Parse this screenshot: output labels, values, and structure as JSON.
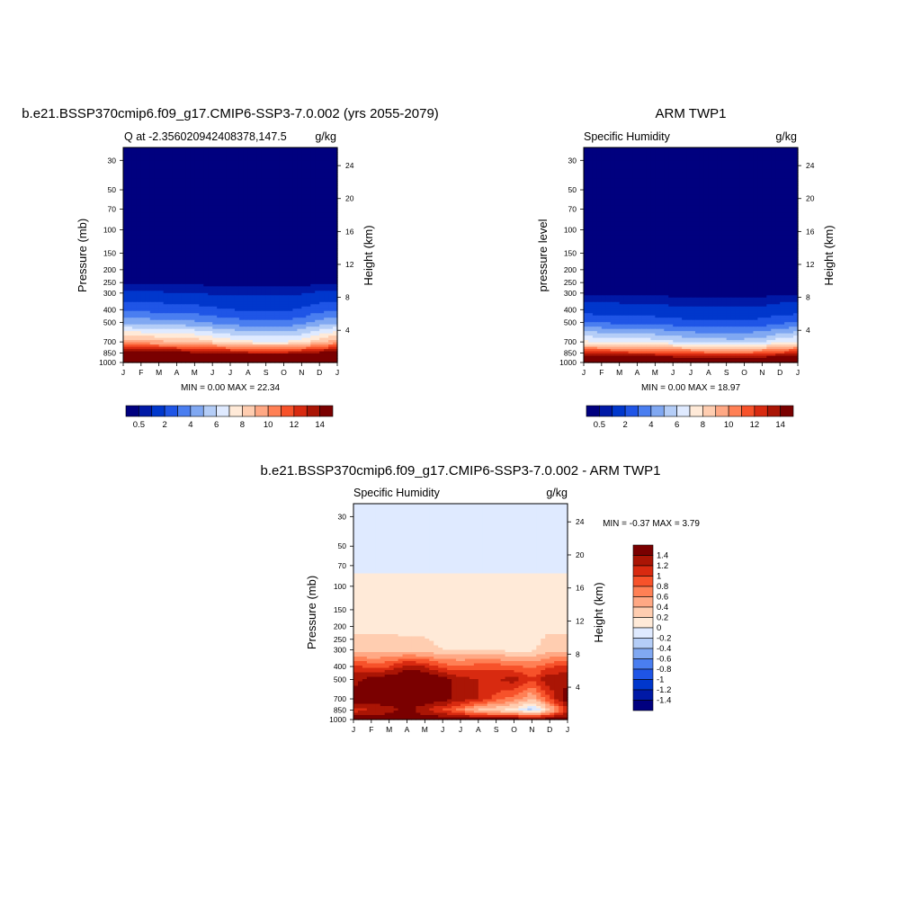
{
  "panels": [
    {
      "title": "b.e21.BSSP370cmip6.f09_g17.CMIP6-SSP3-7.0.002 (yrs 2055-2079)",
      "left_label": "Q at -2.356020942408378,147.5",
      "units": "g/kg",
      "ylabel": "Pressure (mb)",
      "ylabel_right": "Height (km)",
      "minmax": "MIN =   0.00 MAX =  22.34"
    },
    {
      "title": "ARM TWP1",
      "left_label": "Specific Humidity",
      "units": "g/kg",
      "ylabel": "pressure level",
      "ylabel_right": "Height (km)",
      "minmax": "MIN =   0.00 MAX =  18.97"
    },
    {
      "title": "b.e21.BSSP370cmip6.f09_g17.CMIP6-SSP3-7.0.002 - ARM TWP1",
      "left_label": "Specific Humidity",
      "units": "g/kg",
      "ylabel": "Pressure (mb)",
      "ylabel_right": "Height (km)",
      "minmax": "MIN =  -0.37 MAX =   3.79"
    }
  ],
  "axes": {
    "pressure_ticks": [
      30,
      50,
      70,
      100,
      150,
      200,
      250,
      300,
      400,
      500,
      700,
      850,
      1000
    ],
    "height_ticks": [
      24,
      20,
      16,
      12,
      8,
      4
    ],
    "month_ticks": [
      "J",
      "F",
      "M",
      "A",
      "M",
      "J",
      "J",
      "A",
      "S",
      "O",
      "N",
      "D",
      "J"
    ]
  },
  "colorbars": {
    "abs_labels": [
      "0.5",
      "2",
      "4",
      "6",
      "8",
      "10",
      "12",
      "14"
    ],
    "abs_colors": [
      "#00007f",
      "#0019a6",
      "#0037cc",
      "#1f55e6",
      "#4a7ef0",
      "#80a8f2",
      "#b4cdf7",
      "#dfeaff",
      "#ffead8",
      "#ffcdb0",
      "#ffa884",
      "#ff8055",
      "#f7522a",
      "#d82a10",
      "#aa1505",
      "#7a0000"
    ],
    "diff_labels": [
      "1.4",
      "1.2",
      "1",
      "0.8",
      "0.6",
      "0.4",
      "0.2",
      "0",
      "-0.2",
      "-0.4",
      "-0.6",
      "-0.8",
      "-1",
      "-1.2",
      "-1.4"
    ],
    "diff_colors": [
      "#7a0000",
      "#aa1505",
      "#d82a10",
      "#f7522a",
      "#ff8055",
      "#ffa884",
      "#ffcdb0",
      "#ffead8",
      "#dfeaff",
      "#b4cdf7",
      "#80a8f2",
      "#4a7ef0",
      "#1f55e6",
      "#0037cc",
      "#0019a6",
      "#00007f"
    ]
  },
  "chart_data": [
    {
      "type": "heatmap",
      "title": "b.e21.BSSP370cmip6.f09_g17.CMIP6-SSP3-7.0.002 (yrs 2055-2079)",
      "xlabel": "",
      "ylabel": "Pressure (mb)",
      "x": [
        "J",
        "F",
        "M",
        "A",
        "M",
        "J",
        "J",
        "A",
        "S",
        "O",
        "N",
        "D",
        "J"
      ],
      "y": [
        30,
        50,
        70,
        100,
        150,
        200,
        250,
        300,
        400,
        500,
        700,
        850,
        1000
      ],
      "ylim": [
        1000,
        30
      ],
      "scale": "log-pressure",
      "values": [
        [
          0,
          0,
          0,
          0,
          0,
          0,
          0,
          0,
          0,
          0,
          0,
          0,
          0
        ],
        [
          0,
          0,
          0,
          0,
          0,
          0,
          0,
          0,
          0,
          0,
          0,
          0,
          0
        ],
        [
          0,
          0,
          0,
          0,
          0,
          0,
          0,
          0,
          0,
          0,
          0,
          0,
          0
        ],
        [
          0,
          0,
          0,
          0,
          0,
          0,
          0,
          0,
          0,
          0,
          0,
          0,
          0
        ],
        [
          0,
          0,
          0,
          0,
          0,
          0,
          0,
          0,
          0,
          0,
          0,
          0,
          0
        ],
        [
          0.1,
          0.1,
          0.1,
          0.1,
          0.1,
          0.1,
          0.1,
          0.1,
          0.1,
          0.1,
          0.1,
          0.1,
          0.1
        ],
        [
          0.4,
          0.4,
          0.4,
          0.4,
          0.4,
          0.3,
          0.3,
          0.3,
          0.3,
          0.3,
          0.3,
          0.4,
          0.4
        ],
        [
          1.2,
          1.1,
          1.1,
          1.0,
          1.0,
          0.9,
          0.9,
          0.8,
          0.8,
          0.8,
          0.9,
          1.1,
          1.2
        ],
        [
          2.9,
          2.7,
          2.6,
          2.6,
          2.4,
          2.2,
          2.0,
          1.9,
          1.9,
          1.9,
          2.1,
          2.6,
          2.9
        ],
        [
          4.8,
          4.6,
          4.5,
          4.4,
          4.2,
          3.8,
          3.5,
          3.3,
          3.3,
          3.3,
          3.6,
          4.4,
          4.8
        ],
        [
          9.5,
          9.4,
          9.2,
          9.1,
          8.8,
          8.2,
          7.6,
          7.2,
          7.0,
          7.0,
          7.5,
          8.8,
          9.5
        ],
        [
          14.6,
          14.6,
          14.5,
          14.5,
          14.3,
          14.0,
          13.6,
          13.4,
          13.3,
          13.3,
          13.6,
          14.4,
          14.6
        ],
        [
          19.5,
          19.5,
          19.6,
          19.6,
          19.4,
          19.0,
          18.6,
          18.5,
          18.5,
          18.5,
          18.7,
          19.3,
          19.5
        ]
      ]
    },
    {
      "type": "heatmap",
      "title": "ARM TWP1",
      "xlabel": "",
      "ylabel": "pressure level",
      "x": [
        "J",
        "F",
        "M",
        "A",
        "M",
        "J",
        "J",
        "A",
        "S",
        "O",
        "N",
        "D",
        "J"
      ],
      "y": [
        30,
        50,
        70,
        100,
        150,
        200,
        250,
        300,
        400,
        500,
        700,
        850,
        1000
      ],
      "ylim": [
        1000,
        30
      ],
      "scale": "log-pressure",
      "values": [
        [
          0,
          0,
          0,
          0,
          0,
          0,
          0,
          0,
          0,
          0,
          0,
          0,
          0
        ],
        [
          0,
          0,
          0,
          0,
          0,
          0,
          0,
          0,
          0,
          0,
          0,
          0,
          0
        ],
        [
          0,
          0,
          0,
          0,
          0,
          0,
          0,
          0,
          0,
          0,
          0,
          0,
          0
        ],
        [
          0,
          0,
          0,
          0,
          0,
          0,
          0,
          0,
          0,
          0,
          0,
          0,
          0
        ],
        [
          0,
          0,
          0,
          0,
          0,
          0,
          0,
          0,
          0,
          0,
          0,
          0,
          0
        ],
        [
          0,
          0,
          0,
          0,
          0,
          0,
          0,
          0,
          0,
          0,
          0,
          0,
          0
        ],
        [
          0.1,
          0.1,
          0.1,
          0.1,
          0.1,
          0.1,
          0.1,
          0.1,
          0.1,
          0.1,
          0.1,
          0.1,
          0.1
        ],
        [
          0.4,
          0.4,
          0.4,
          0.4,
          0.4,
          0.3,
          0.3,
          0.3,
          0.3,
          0.3,
          0.3,
          0.4,
          0.4
        ],
        [
          1.5,
          1.4,
          1.4,
          1.3,
          1.3,
          1.2,
          1.1,
          1.1,
          1.1,
          1.1,
          1.2,
          1.4,
          1.5
        ],
        [
          3.0,
          2.9,
          2.8,
          2.7,
          2.6,
          2.4,
          2.3,
          2.2,
          2.2,
          2.2,
          2.4,
          2.8,
          3.0
        ],
        [
          7.2,
          7.0,
          6.9,
          6.8,
          6.5,
          6.1,
          5.8,
          5.6,
          5.5,
          5.5,
          5.8,
          6.8,
          7.2
        ],
        [
          12.6,
          12.5,
          12.4,
          12.3,
          12.1,
          11.8,
          11.5,
          11.3,
          11.2,
          11.2,
          11.5,
          12.3,
          12.6
        ],
        [
          17.8,
          17.8,
          17.9,
          17.9,
          17.7,
          17.3,
          17.0,
          16.9,
          16.9,
          16.9,
          17.1,
          17.6,
          17.8
        ]
      ]
    },
    {
      "type": "heatmap",
      "title": "b.e21.BSSP370cmip6.f09_g17.CMIP6-SSP3-7.0.002 - ARM TWP1",
      "xlabel": "",
      "ylabel": "Pressure (mb)",
      "x": [
        "J",
        "F",
        "M",
        "A",
        "M",
        "J",
        "J",
        "A",
        "S",
        "O",
        "N",
        "D",
        "J"
      ],
      "y": [
        30,
        50,
        70,
        100,
        150,
        200,
        250,
        300,
        400,
        500,
        700,
        850,
        1000
      ],
      "ylim": [
        1000,
        30
      ],
      "scale": "log-pressure",
      "values": [
        [
          -0.05,
          -0.05,
          -0.05,
          -0.05,
          -0.05,
          -0.05,
          -0.05,
          -0.05,
          -0.05,
          -0.05,
          -0.05,
          -0.05,
          -0.05
        ],
        [
          -0.05,
          -0.05,
          -0.05,
          -0.05,
          -0.05,
          -0.05,
          -0.05,
          -0.05,
          -0.05,
          -0.05,
          -0.05,
          -0.05,
          -0.05
        ],
        [
          -0.05,
          -0.05,
          -0.05,
          -0.05,
          -0.05,
          -0.05,
          -0.05,
          -0.05,
          -0.05,
          -0.05,
          -0.05,
          -0.05,
          -0.05
        ],
        [
          0.08,
          0.08,
          0.08,
          0.08,
          0.08,
          0.08,
          0.08,
          0.08,
          0.08,
          0.08,
          0.08,
          0.08,
          0.08
        ],
        [
          0.1,
          0.1,
          0.1,
          0.1,
          0.1,
          0.1,
          0.1,
          0.1,
          0.1,
          0.1,
          0.1,
          0.1,
          0.1
        ],
        [
          0.12,
          0.12,
          0.12,
          0.12,
          0.12,
          0.12,
          0.12,
          0.12,
          0.12,
          0.12,
          0.12,
          0.12,
          0.12
        ],
        [
          0.25,
          0.25,
          0.25,
          0.22,
          0.22,
          0.15,
          0.15,
          0.15,
          0.15,
          0.15,
          0.15,
          0.25,
          0.25
        ],
        [
          0.3,
          0.3,
          0.28,
          0.28,
          0.25,
          0.2,
          0.2,
          0.18,
          0.18,
          0.12,
          0.15,
          0.3,
          0.3
        ],
        [
          1.1,
          0.9,
          1.0,
          1.3,
          1.2,
          0.9,
          0.85,
          0.9,
          0.9,
          0.85,
          0.75,
          0.95,
          1.1
        ],
        [
          1.3,
          1.5,
          1.6,
          1.7,
          1.7,
          1.5,
          1.3,
          1.2,
          1.2,
          1.3,
          1.0,
          1.4,
          1.3
        ],
        [
          1.6,
          1.5,
          1.6,
          1.6,
          1.6,
          1.5,
          1.3,
          1.2,
          0.9,
          0.7,
          0.4,
          1.0,
          1.6
        ],
        [
          1.1,
          1.2,
          1.3,
          1.5,
          1.2,
          1.0,
          0.7,
          0.3,
          0.2,
          0.1,
          -0.3,
          0.3,
          1.1
        ],
        [
          1.6,
          1.6,
          1.6,
          1.6,
          1.6,
          1.6,
          1.6,
          1.6,
          1.6,
          1.6,
          1.5,
          1.6,
          1.6
        ]
      ]
    }
  ]
}
